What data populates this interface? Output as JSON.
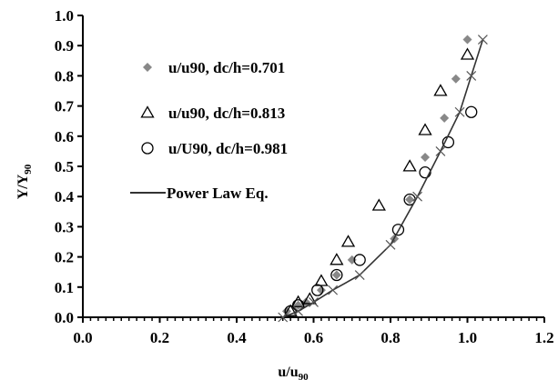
{
  "chart_data": {
    "type": "scatter",
    "xlabel": "u/u",
    "xlabel_sub": "90",
    "ylabel": "Y/Y",
    "ylabel_sub": "90",
    "xlim": [
      0.0,
      1.2
    ],
    "ylim": [
      0.0,
      1.0
    ],
    "x_ticks": [
      "0.0",
      "0.2",
      "0.4",
      "0.6",
      "0.8",
      "1.0",
      "1.2"
    ],
    "y_ticks": [
      "0.0",
      "0.1",
      "0.2",
      "0.3",
      "0.4",
      "0.5",
      "0.6",
      "0.7",
      "0.8",
      "0.9",
      "1.0"
    ],
    "grid": false,
    "legend_position": "top-left",
    "series": [
      {
        "name": "u/u90, dc/h=0.701",
        "marker": "diamond",
        "color": "#888888",
        "points": [
          [
            0.53,
            0.02
          ],
          [
            0.56,
            0.04
          ],
          [
            0.58,
            0.05
          ],
          [
            0.62,
            0.09
          ],
          [
            0.66,
            0.14
          ],
          [
            0.7,
            0.19
          ],
          [
            0.81,
            0.26
          ],
          [
            0.85,
            0.39
          ],
          [
            0.89,
            0.53
          ],
          [
            0.94,
            0.66
          ],
          [
            0.97,
            0.79
          ],
          [
            1.0,
            0.92
          ]
        ]
      },
      {
        "name": "u/u90, dc/h=0.813",
        "marker": "triangle",
        "color": "#000000",
        "points": [
          [
            0.54,
            0.02
          ],
          [
            0.56,
            0.05
          ],
          [
            0.59,
            0.06
          ],
          [
            0.62,
            0.12
          ],
          [
            0.66,
            0.19
          ],
          [
            0.69,
            0.25
          ],
          [
            0.77,
            0.37
          ],
          [
            0.85,
            0.5
          ],
          [
            0.89,
            0.62
          ],
          [
            0.93,
            0.75
          ],
          [
            1.0,
            0.87
          ]
        ]
      },
      {
        "name": "u/U90, dc/h=0.981",
        "marker": "circle",
        "color": "#000000",
        "points": [
          [
            0.54,
            0.02
          ],
          [
            0.56,
            0.04
          ],
          [
            0.61,
            0.09
          ],
          [
            0.66,
            0.14
          ],
          [
            0.72,
            0.19
          ],
          [
            0.82,
            0.29
          ],
          [
            0.85,
            0.39
          ],
          [
            0.89,
            0.48
          ],
          [
            0.95,
            0.58
          ],
          [
            1.01,
            0.68
          ]
        ]
      },
      {
        "name": "Power Law Eq.",
        "marker": "line-x",
        "color": "#333333",
        "points": [
          [
            0.52,
            0.0
          ],
          [
            0.56,
            0.02
          ],
          [
            0.6,
            0.05
          ],
          [
            0.65,
            0.09
          ],
          [
            0.72,
            0.14
          ],
          [
            0.8,
            0.24
          ],
          [
            0.87,
            0.4
          ],
          [
            0.93,
            0.55
          ],
          [
            0.98,
            0.68
          ],
          [
            1.01,
            0.8
          ],
          [
            1.04,
            0.92
          ]
        ]
      }
    ]
  }
}
